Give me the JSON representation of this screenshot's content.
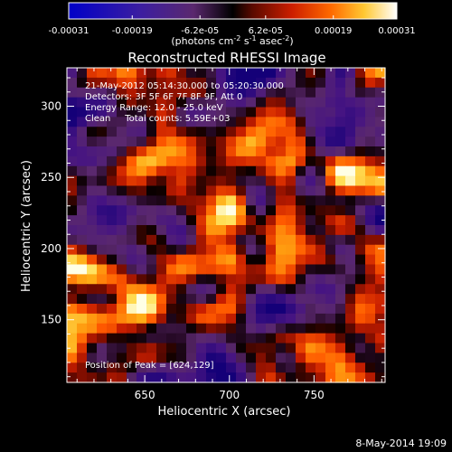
{
  "chart_data": {
    "type": "heatmap",
    "title": "Reconstructed RHESSI Image",
    "xlabel": "Heliocentric X (arcsec)",
    "ylabel": "Heliocentric Y (arcsec)",
    "xlim": [
      604,
      792
    ],
    "ylim": [
      106,
      327
    ],
    "xticks": [
      650,
      700,
      750
    ],
    "yticks": [
      150,
      200,
      250,
      300
    ],
    "grid": false,
    "colorbar": {
      "placement": "top",
      "colormap": "black-blue-purple-red-orange-yellow-white",
      "range": [
        -0.00031,
        0.00031
      ],
      "tick_labels": [
        "-0.00031",
        "-0.00019",
        "-6.2e-05",
        "6.2e-05",
        "0.00019",
        "0.00031"
      ],
      "units_prefix": "(photons cm",
      "units_exp1": "-2",
      "units_mid": " s",
      "units_exp2": "-1",
      "units_mid2": " asec",
      "units_exp3": "-2",
      "units_suffix": ")"
    },
    "annotations": [
      "21-May-2012 05:14:30.000 to 05:20:30.000",
      "Detectors: 3F 5F 6F 7F 8F 9F, Att 0",
      "Energy Range: 12.0 - 25.0 keV",
      "Clean     Total counts: 5.59E+03"
    ],
    "peak_label": "Position of Peak = [624,129]",
    "peak_position": [
      624,
      129
    ],
    "footer_date": "8-May-2014 19:09",
    "image_grid": {
      "rows": 32,
      "cols": 32,
      "seed": 17
    }
  }
}
